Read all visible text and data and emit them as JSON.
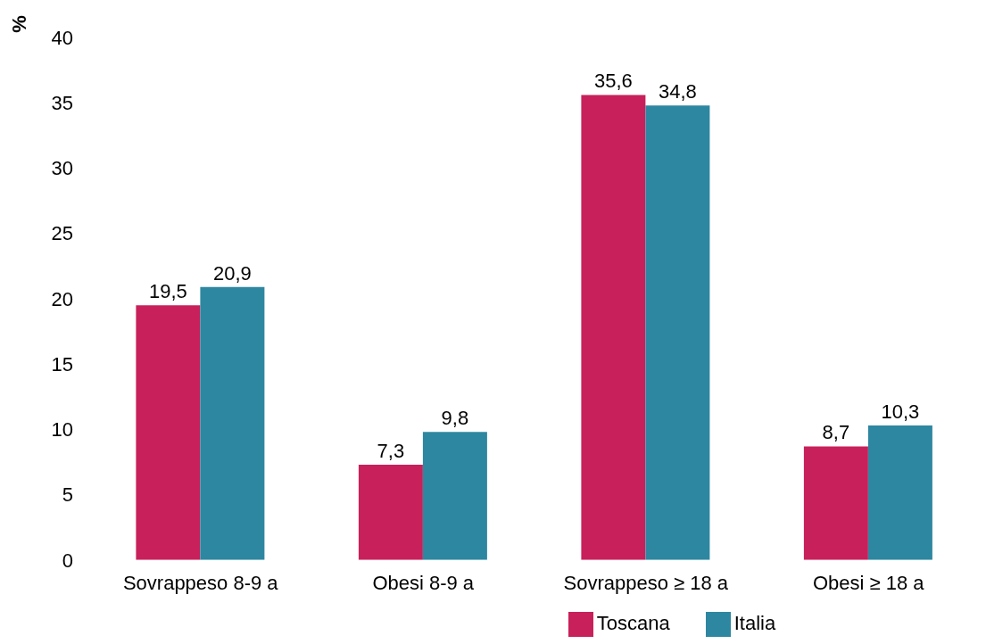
{
  "chart_data": {
    "type": "bar",
    "ylabel": "%",
    "categories": [
      "Sovrappeso 8-9 a",
      "Obesi  8-9 a",
      "Sovrappeso ≥ 18 a",
      "Obesi ≥ 18 a"
    ],
    "series": [
      {
        "name": "Toscana",
        "color": "#c8205a",
        "values": [
          19.5,
          7.3,
          35.6,
          8.7
        ],
        "value_labels": [
          "19,5",
          "7,3",
          "35,6",
          "8,7"
        ]
      },
      {
        "name": "Italia",
        "color": "#2e87a0",
        "values": [
          20.9,
          9.8,
          34.8,
          10.3
        ],
        "value_labels": [
          "20,9",
          "9,8",
          "34,8",
          "10,3"
        ]
      }
    ],
    "ylim": [
      0,
      40
    ],
    "yticks": [
      0,
      5,
      10,
      15,
      20,
      25,
      30,
      35,
      40
    ],
    "legend": "bottom"
  }
}
